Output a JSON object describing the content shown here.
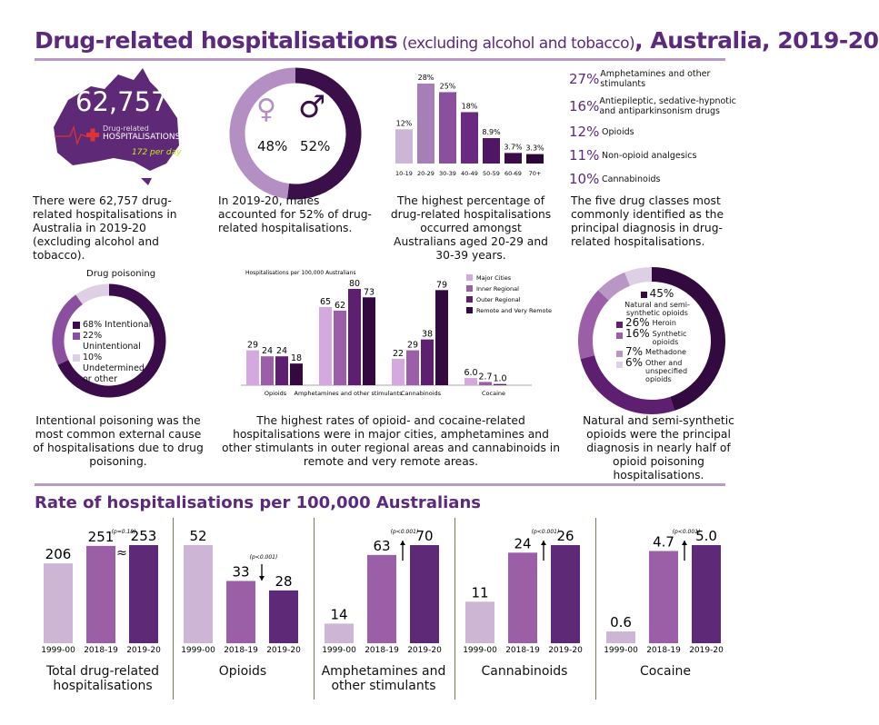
{
  "title": {
    "main": "Drug-related hospitalisations",
    "paren": " (excluding alcohol and tobacco)",
    "tail": ", Australia, 2019-20"
  },
  "map": {
    "number": "62,757",
    "label1": "Drug-related",
    "label2": "HOSPITALISATIONS",
    "per_day": "172 per day",
    "caption": "There were 62,757 drug-related hospitalisations in Australia in 2019-20 (excluding alcohol and tobacco)."
  },
  "gender": {
    "female": "48%",
    "male": "52%",
    "female_value": 48,
    "male_value": 52,
    "caption": "In 2019-20, males accounted for 52% of drug-related hospitalisations."
  },
  "age_chart": {
    "type": "bar",
    "categories": [
      "10-19",
      "20-29",
      "30-39",
      "40-49",
      "50-59",
      "60-69",
      "70+"
    ],
    "values": [
      12,
      28,
      25,
      18,
      8.9,
      3.7,
      3.3
    ],
    "labels": [
      "12%",
      "28%",
      "25%",
      "18%",
      "8.9%",
      "3.7%",
      "3.3%"
    ],
    "colors": [
      "#cdb5d6",
      "#a77fb8",
      "#8a4f9f",
      "#6a2a82",
      "#4f1664",
      "#3a0d4a",
      "#2a0736"
    ],
    "caption": "The highest percentage of drug-related hospitalisations occurred amongst Australians aged 20-29 and 30-39 years."
  },
  "drug_classes": {
    "items": [
      {
        "pct": "27%",
        "label": "Amphetamines and other stimulants"
      },
      {
        "pct": "16%",
        "label": "Antiepileptic, sedative-hypnotic and antiparkinsonism drugs"
      },
      {
        "pct": "12%",
        "label": "Opioids"
      },
      {
        "pct": "11%",
        "label": "Non-opioid analgesics"
      },
      {
        "pct": "10%",
        "label": "Cannabinoids"
      }
    ],
    "caption": "The five drug classes most commonly identified as the principal diagnosis in drug-related hospitalisations."
  },
  "poisoning": {
    "type": "pie",
    "title": "Drug poisoning",
    "slices": [
      {
        "label": "68% Intentional",
        "value": 68,
        "color": "#3a0d4a"
      },
      {
        "label": "22% Unintentional",
        "value": 22,
        "color": "#8a4f9f"
      },
      {
        "label": "10% Undetermined or other",
        "value": 10,
        "color": "#ddd0e4"
      }
    ],
    "caption": "Intentional poisoning was the most common external cause of hospitalisations due to drug poisoning."
  },
  "remoteness": {
    "type": "bar",
    "ylabel": "Hospitalisations per 100,000 Australians",
    "categories": [
      "Opioids",
      "Amphetamines and other stimulants",
      "Cannabinoids",
      "Cocaine"
    ],
    "series": [
      {
        "name": "Major Cities",
        "color": "#d4a9de",
        "values": [
          29,
          65,
          22,
          6.0
        ],
        "labels": [
          "29",
          "65",
          "22",
          "6.0"
        ]
      },
      {
        "name": "Inner Regional",
        "color": "#9b5fa8",
        "values": [
          24,
          62,
          29,
          2.7
        ],
        "labels": [
          "24",
          "62",
          "29",
          "2.7"
        ]
      },
      {
        "name": "Outer Regional",
        "color": "#5e1f70",
        "values": [
          24,
          80,
          38,
          1.0
        ],
        "labels": [
          "24",
          "80",
          "38",
          "1.0"
        ]
      },
      {
        "name": "Remote and Very Remote",
        "color": "#330a3f",
        "values": [
          18,
          73,
          79,
          null
        ],
        "labels": [
          "18",
          "73",
          "79",
          ""
        ]
      }
    ],
    "caption": "The highest rates of opioid- and cocaine-related hospitalisations were in major cities, amphetamines and other stimulants in outer regional areas and cannabinoids in remote and very remote areas."
  },
  "opioid_types": {
    "type": "pie",
    "slices": [
      {
        "pct": "45%",
        "label": "Natural and semi-synthetic opioids",
        "value": 45,
        "color": "#330a3f"
      },
      {
        "pct": "26%",
        "label": "Heroin",
        "value": 26,
        "color": "#5e1f70"
      },
      {
        "pct": "16%",
        "label": "Synthetic opioids",
        "value": 16,
        "color": "#9b5fa8"
      },
      {
        "pct": "7%",
        "label": "Methadone",
        "value": 7,
        "color": "#b897c4"
      },
      {
        "pct": "6%",
        "label": "Other and unspecified opioids",
        "value": 6,
        "color": "#ddd0e4"
      }
    ],
    "caption": "Natural and semi-synthetic opioids were the principal diagnosis in nearly half of opioid poisoning hospitalisations."
  },
  "rates": {
    "title": "Rate of hospitalisations per 100,000 Australians",
    "years": [
      "1999-00",
      "2018-19",
      "2019-20"
    ],
    "colors": [
      "#cdb5d6",
      "#9b5fa8",
      "#5e2a78"
    ],
    "panels": [
      {
        "name": "Total drug-related hospitalisations",
        "values": [
          206,
          251,
          253
        ],
        "labels": [
          "206",
          "251",
          "253"
        ],
        "p": "(p=0.18)",
        "trend": "≈"
      },
      {
        "name": "Opioids",
        "values": [
          52,
          33,
          28
        ],
        "labels": [
          "52",
          "33",
          "28"
        ],
        "p": "(p<0.001)",
        "trend": "down"
      },
      {
        "name": "Amphetamines and other stimulants",
        "values": [
          14,
          63,
          70
        ],
        "labels": [
          "14",
          "63",
          "70"
        ],
        "p": "(p<0.001)",
        "trend": "up"
      },
      {
        "name": "Cannabinoids",
        "values": [
          11,
          24,
          26
        ],
        "labels": [
          "11",
          "24",
          "26"
        ],
        "p": "(p<0.001)",
        "trend": "up"
      },
      {
        "name": "Cocaine",
        "values": [
          0.6,
          4.7,
          5.0
        ],
        "labels": [
          "0.6",
          "4.7",
          "5.0"
        ],
        "p": "(p<0.001)",
        "trend": "up"
      }
    ]
  }
}
